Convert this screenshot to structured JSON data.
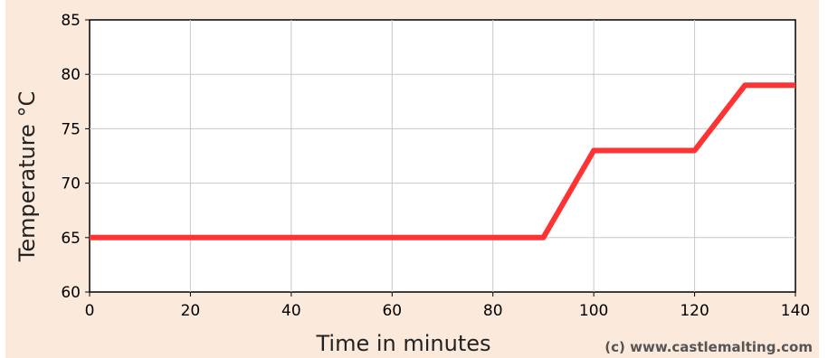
{
  "chart_data": {
    "type": "line",
    "title": "",
    "xlabel": "Time in minutes",
    "ylabel": "Temperature °C",
    "xlim": [
      0,
      140
    ],
    "ylim": [
      60,
      85
    ],
    "xticks": [
      "0",
      "20",
      "40",
      "60",
      "80",
      "100",
      "120",
      "140"
    ],
    "yticks": [
      "60",
      "65",
      "70",
      "75",
      "80",
      "85"
    ],
    "grid": true,
    "series": [
      {
        "color": "#ff3333",
        "x": [
          0,
          90,
          100,
          120,
          130,
          140
        ],
        "y": [
          65,
          65,
          73,
          73,
          79,
          79
        ]
      }
    ],
    "credit": "(c) www.castlemalting.com"
  },
  "colors": {
    "background": "#fbeadb",
    "plot_background": "#ffffff",
    "grid": "#c8c8c8",
    "line": "#ff3333"
  }
}
